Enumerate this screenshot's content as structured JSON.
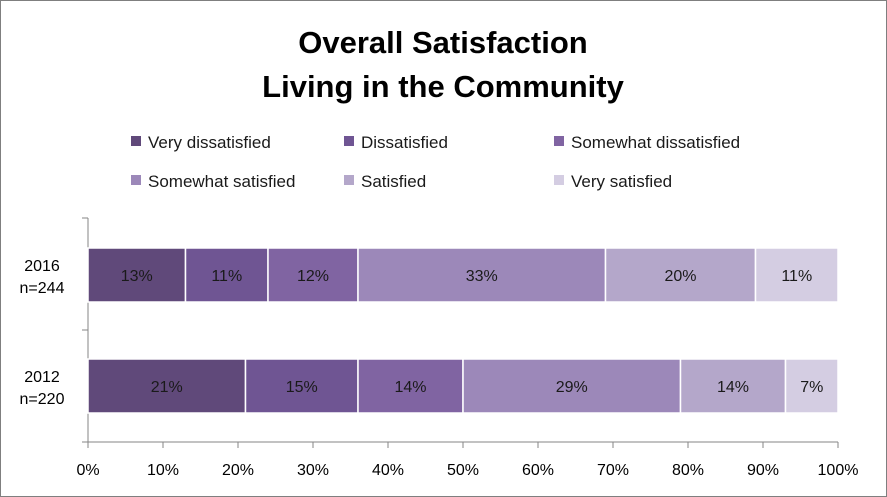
{
  "chart_data": {
    "type": "bar",
    "orientation": "horizontal-stacked-100",
    "title_lines": [
      "Overall Satisfaction",
      "Living in the Community"
    ],
    "categories": [
      {
        "year": "2016",
        "n": "n=244"
      },
      {
        "year": "2012",
        "n": "n=220"
      }
    ],
    "series": [
      {
        "name": "Very dissatisfied",
        "color": "#60497a",
        "values": [
          13,
          21
        ],
        "labels": [
          "13%",
          "21%"
        ]
      },
      {
        "name": "Dissatisfied",
        "color": "#6f5593",
        "values": [
          11,
          15
        ],
        "labels": [
          "11%",
          "15%"
        ]
      },
      {
        "name": "Somewhat dissatisfied",
        "color": "#8064a2",
        "values": [
          12,
          14
        ],
        "labels": [
          "12%",
          "14%"
        ]
      },
      {
        "name": "Somewhat satisfied",
        "color": "#9c88b9",
        "values": [
          33,
          29
        ],
        "labels": [
          "33%",
          "29%"
        ]
      },
      {
        "name": "Satisfied",
        "color": "#b4a7ca",
        "values": [
          20,
          14
        ],
        "labels": [
          "20%",
          "14%"
        ]
      },
      {
        "name": "Very satisfied",
        "color": "#d4cde2",
        "values": [
          11,
          7
        ],
        "labels": [
          "11%",
          "7%"
        ]
      }
    ],
    "xlim": [
      0,
      100
    ],
    "xticks": [
      "0%",
      "10%",
      "20%",
      "30%",
      "40%",
      "50%",
      "60%",
      "70%",
      "80%",
      "90%",
      "100%"
    ],
    "legend_position": "top",
    "grid": false
  }
}
